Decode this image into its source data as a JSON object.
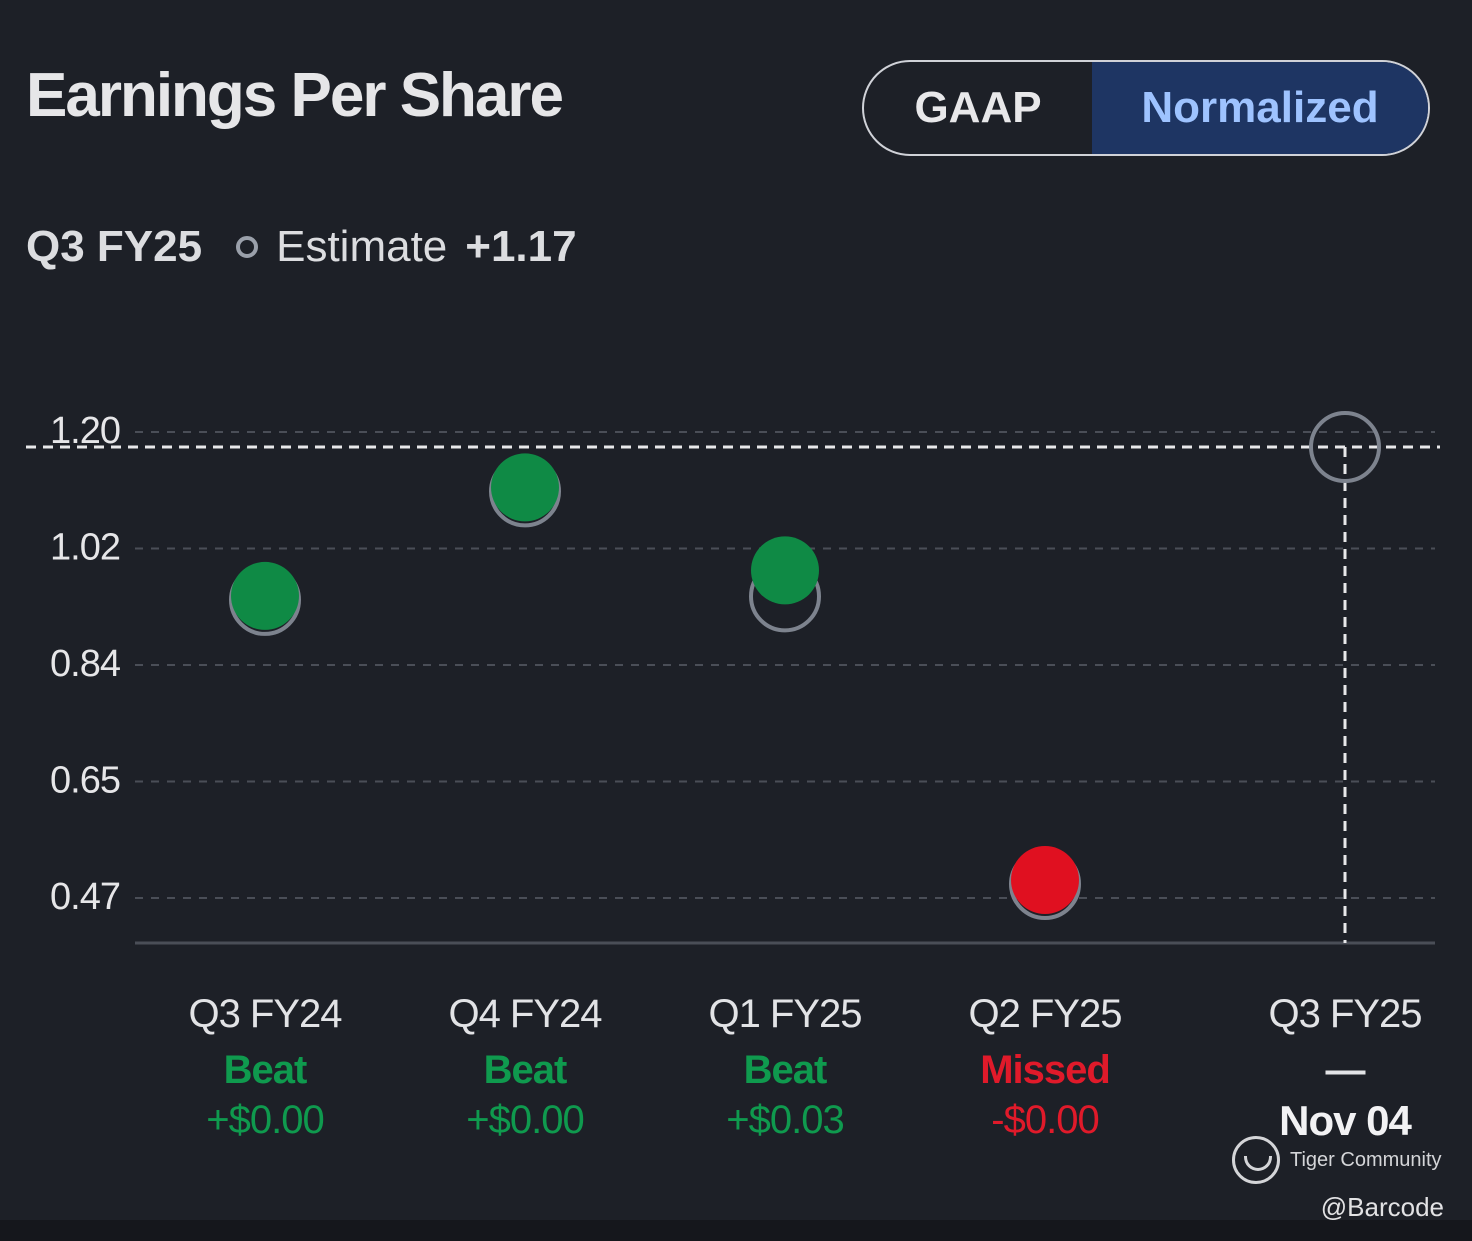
{
  "header": {
    "title": "Earnings Per Share",
    "toggle": {
      "options": [
        "GAAP",
        "Normalized"
      ],
      "selected": "Normalized"
    }
  },
  "subtitle": {
    "period": "Q3 FY25",
    "estimate_label": "Estimate",
    "estimate_value": "+1.17"
  },
  "chart_data": {
    "type": "scatter",
    "y_ticks": [
      "1.20",
      "1.02",
      "0.84",
      "0.65",
      "0.47"
    ],
    "ylim": [
      0.4,
      1.22
    ],
    "estimate_line": 1.17,
    "categories": [
      {
        "period": "Q3 FY24",
        "status": "Beat",
        "diff": "+$0.00",
        "actual": 0.915,
        "estimate": 0.915
      },
      {
        "period": "Q4 FY24",
        "status": "Beat",
        "diff": "+$0.00",
        "actual": 1.085,
        "estimate": 1.085
      },
      {
        "period": "Q1 FY25",
        "status": "Beat",
        "diff": "+$0.03",
        "actual": 0.955,
        "estimate": 0.93
      },
      {
        "period": "Q2 FY25",
        "status": "Missed",
        "diff": "-$0.00",
        "actual": 0.47,
        "estimate": 0.47
      },
      {
        "period": "Q3 FY25",
        "status": "—",
        "date": "Nov 04",
        "actual": null,
        "estimate": 1.17
      }
    ],
    "colors": {
      "beat": "#0f8a45",
      "missed": "#e01020",
      "estimate_ring": "#7d838e",
      "grid": "#4a4e57",
      "estimate_line": "#e8e8ea"
    }
  },
  "watermark": {
    "brand": "Tiger Community",
    "handle": "@Barcode"
  }
}
